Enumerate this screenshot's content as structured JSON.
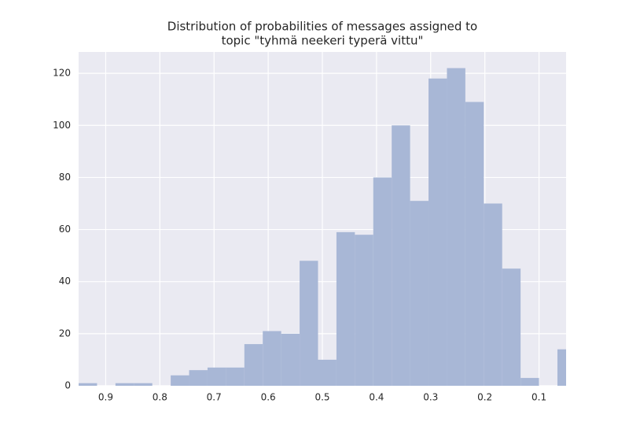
{
  "chart_data": {
    "type": "histogram",
    "title": [
      "Distribution of probabilities of messages assigned to",
      "topic \"tyhmä neekeri typerä vittu\""
    ],
    "bins": [
      0.032,
      0.066,
      0.1,
      0.134,
      0.168,
      0.202,
      0.236,
      0.27,
      0.304,
      0.338,
      0.372,
      0.406,
      0.44,
      0.474,
      0.508,
      0.542,
      0.576,
      0.61,
      0.644,
      0.678,
      0.712,
      0.746,
      0.78,
      0.814,
      0.848,
      0.882,
      0.916,
      0.95
    ],
    "values": [
      14,
      0,
      3,
      45,
      70,
      109,
      122,
      118,
      71,
      100,
      80,
      58,
      59,
      10,
      48,
      20,
      21,
      16,
      7,
      7,
      6,
      4,
      0,
      1,
      1,
      0,
      1
    ],
    "color": "#a8b7d6",
    "background": "#eaeaf2",
    "xlim": [
      0.95,
      0.05
    ],
    "xticks": [
      0.9,
      0.8,
      0.7,
      0.6,
      0.5,
      0.4,
      0.3,
      0.2,
      0.1
    ],
    "ylim": [
      0,
      128.2
    ],
    "yticks": [
      0,
      20,
      40,
      60,
      80,
      100,
      120
    ],
    "grid": true
  }
}
